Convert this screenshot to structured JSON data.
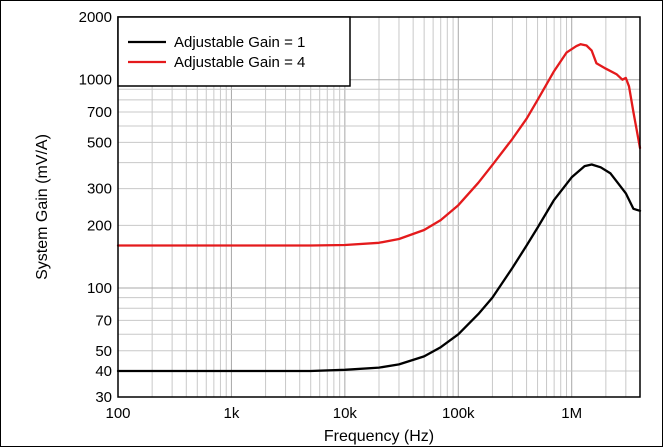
{
  "chart_data": {
    "type": "line",
    "title": "",
    "xlabel": "Frequency (Hz)",
    "ylabel": "System Gain (mV/A)",
    "xscale": "log",
    "yscale": "log",
    "xlim": [
      100,
      4000000
    ],
    "ylim": [
      30,
      2000
    ],
    "grid": true,
    "legend_position": "top-left",
    "x_ticks": [
      {
        "value": 100,
        "label": "100"
      },
      {
        "value": 1000,
        "label": "1k"
      },
      {
        "value": 10000,
        "label": "10k"
      },
      {
        "value": 100000,
        "label": "100k"
      },
      {
        "value": 1000000,
        "label": "1M"
      }
    ],
    "y_ticks": [
      {
        "value": 30,
        "label": "30"
      },
      {
        "value": 40,
        "label": "40"
      },
      {
        "value": 50,
        "label": "50"
      },
      {
        "value": 70,
        "label": "70"
      },
      {
        "value": 100,
        "label": "100"
      },
      {
        "value": 200,
        "label": "200"
      },
      {
        "value": 300,
        "label": "300"
      },
      {
        "value": 500,
        "label": "500"
      },
      {
        "value": 700,
        "label": "700"
      },
      {
        "value": 1000,
        "label": "1000"
      },
      {
        "value": 2000,
        "label": "2000"
      }
    ],
    "series": [
      {
        "name": "Adjustable Gain = 1",
        "color": "#000000",
        "points": [
          [
            100,
            40
          ],
          [
            1000,
            40
          ],
          [
            5000,
            40
          ],
          [
            10000,
            40.5
          ],
          [
            20000,
            41.5
          ],
          [
            30000,
            43
          ],
          [
            50000,
            47
          ],
          [
            70000,
            52
          ],
          [
            100000,
            60
          ],
          [
            150000,
            75
          ],
          [
            200000,
            90
          ],
          [
            300000,
            125
          ],
          [
            400000,
            160
          ],
          [
            500000,
            195
          ],
          [
            700000,
            265
          ],
          [
            1000000,
            340
          ],
          [
            1300000,
            385
          ],
          [
            1500000,
            392
          ],
          [
            1800000,
            380
          ],
          [
            2200000,
            355
          ],
          [
            2600000,
            315
          ],
          [
            3000000,
            285
          ],
          [
            3500000,
            240
          ],
          [
            4000000,
            235
          ]
        ]
      },
      {
        "name": "Adjustable Gain = 4",
        "color": "#e41a1c",
        "points": [
          [
            100,
            160
          ],
          [
            1000,
            160
          ],
          [
            5000,
            160
          ],
          [
            10000,
            161
          ],
          [
            20000,
            165
          ],
          [
            30000,
            172
          ],
          [
            50000,
            190
          ],
          [
            70000,
            212
          ],
          [
            100000,
            250
          ],
          [
            150000,
            320
          ],
          [
            200000,
            390
          ],
          [
            300000,
            520
          ],
          [
            400000,
            650
          ],
          [
            500000,
            800
          ],
          [
            700000,
            1100
          ],
          [
            900000,
            1350
          ],
          [
            1100000,
            1450
          ],
          [
            1200000,
            1480
          ],
          [
            1350000,
            1460
          ],
          [
            1500000,
            1380
          ],
          [
            1650000,
            1200
          ],
          [
            2000000,
            1130
          ],
          [
            2500000,
            1060
          ],
          [
            2800000,
            1000
          ],
          [
            3000000,
            1020
          ],
          [
            3200000,
            930
          ],
          [
            3500000,
            700
          ],
          [
            4000000,
            470
          ]
        ]
      }
    ]
  }
}
